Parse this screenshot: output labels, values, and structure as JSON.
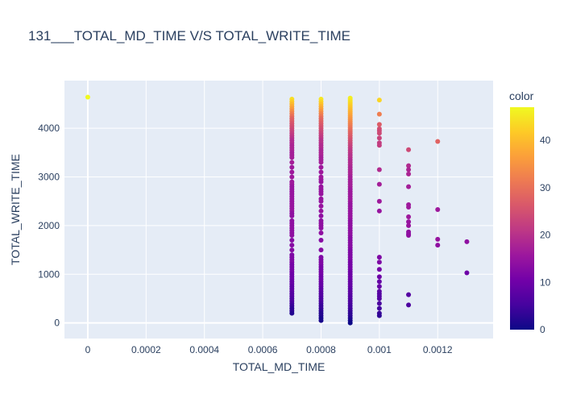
{
  "chart_data": {
    "type": "scatter",
    "title": "131___TOTAL_MD_TIME V/S TOTAL_WRITE_TIME",
    "xlabel": "TOTAL_MD_TIME",
    "ylabel": "TOTAL_WRITE_TIME",
    "xlim": [
      -8e-05,
      0.00139
    ],
    "ylim": [
      -320,
      4980
    ],
    "x_ticks": [
      0,
      0.0002,
      0.0004,
      0.0006,
      0.0008,
      0.001,
      0.0012
    ],
    "x_tick_labels": [
      "0",
      "0.0002",
      "0.0004",
      "0.0006",
      "0.0008",
      "0.001",
      "0.0012"
    ],
    "y_ticks": [
      0,
      1000,
      2000,
      3000,
      4000
    ],
    "y_tick_labels": [
      "0",
      "1000",
      "2000",
      "3000",
      "4000"
    ],
    "grid": true,
    "colorbar": {
      "title": "color",
      "range": [
        0,
        47
      ],
      "ticks": [
        0,
        10,
        20,
        30,
        40
      ],
      "tick_labels": [
        "0",
        "10",
        "20",
        "30",
        "40"
      ],
      "colorscale": [
        "#0d0887",
        "#46039f",
        "#7201a8",
        "#9c179e",
        "#bd3786",
        "#d8576b",
        "#ed7953",
        "#fb9f3a",
        "#fdca26",
        "#f0f921"
      ]
    },
    "series": [
      {
        "x": 0,
        "y": [
          4640
        ],
        "color": [
          47
        ]
      },
      {
        "x": 0.0007,
        "y": [
          4600,
          4550,
          4500,
          4450,
          4400,
          4350,
          4300,
          4250,
          4200,
          4150,
          4100,
          4050,
          4000,
          3950,
          3900,
          3850,
          3800,
          3750,
          3700,
          3650,
          3600,
          3550,
          3500,
          3450,
          3400,
          3300,
          3200,
          3100,
          3000,
          2900,
          2850,
          2800,
          2750,
          2700,
          2650,
          2600,
          2550,
          2500,
          2450,
          2400,
          2350,
          2300,
          2250,
          2200,
          2100,
          2050,
          2000,
          1950,
          1900,
          1850,
          1800,
          1700,
          1600,
          1500,
          1400,
          1350,
          1300,
          1250,
          1200,
          1150,
          1100,
          1050,
          1000,
          950,
          900,
          850,
          800,
          750,
          700,
          650,
          600,
          550,
          500,
          450,
          400,
          350,
          300,
          250,
          200
        ],
        "color": [
          44,
          42,
          40,
          38,
          36,
          34,
          32,
          30,
          28,
          27,
          26,
          25,
          24,
          23,
          22,
          21,
          20,
          19,
          19,
          18,
          18,
          18,
          17,
          17,
          17,
          17,
          16,
          16,
          16,
          16,
          16,
          15,
          15,
          15,
          15,
          15,
          15,
          15,
          15,
          15,
          15,
          15,
          14,
          14,
          14,
          14,
          14,
          14,
          14,
          14,
          14,
          13,
          13,
          13,
          12,
          12,
          12,
          12,
          11,
          11,
          11,
          11,
          10,
          10,
          10,
          9,
          9,
          8,
          8,
          8,
          7,
          7,
          6,
          6,
          5,
          4,
          3,
          3,
          2
        ]
      },
      {
        "x": 0.0008,
        "y": [
          4600,
          4550,
          4500,
          4450,
          4400,
          4350,
          4300,
          4250,
          4200,
          4150,
          4100,
          4050,
          4000,
          3950,
          3900,
          3850,
          3800,
          3750,
          3700,
          3650,
          3600,
          3550,
          3500,
          3450,
          3400,
          3350,
          3300,
          3200,
          3100,
          3000,
          2950,
          2900,
          2800,
          2750,
          2700,
          2650,
          2550,
          2500,
          2400,
          2300,
          2200,
          2100,
          2050,
          2000,
          1950,
          1850,
          1700,
          1500,
          1350,
          1300,
          1250,
          1200,
          1150,
          1100,
          1050,
          1000,
          950,
          900,
          850,
          800,
          750,
          700,
          650,
          600,
          550,
          500,
          450,
          400,
          350,
          300,
          250,
          200,
          150,
          100,
          50
        ],
        "color": [
          45,
          43,
          41,
          39,
          37,
          35,
          33,
          31,
          29,
          28,
          27,
          26,
          25,
          24,
          23,
          22,
          21,
          20,
          20,
          19,
          19,
          18,
          18,
          18,
          17,
          17,
          17,
          16,
          16,
          16,
          16,
          15,
          15,
          15,
          15,
          15,
          15,
          15,
          15,
          15,
          14,
          14,
          14,
          14,
          14,
          14,
          13,
          13,
          12,
          12,
          12,
          12,
          11,
          11,
          11,
          11,
          10,
          10,
          10,
          9,
          9,
          8,
          8,
          7,
          7,
          6,
          6,
          5,
          4,
          4,
          3,
          2,
          2,
          1,
          1
        ]
      },
      {
        "x": 0.0009,
        "y": [
          4620,
          4580,
          4540,
          4500,
          4460,
          4420,
          4380,
          4340,
          4300,
          4260,
          4220,
          4180,
          4140,
          4100,
          4060,
          4020,
          3980,
          3940,
          3900,
          3850,
          3800,
          3750,
          3700,
          3650,
          3600,
          3550,
          3500,
          3450,
          3400,
          3350,
          3300,
          3250,
          3200,
          3150,
          3100,
          3050,
          3000,
          2950,
          2900,
          2850,
          2800,
          2750,
          2700,
          2650,
          2600,
          2550,
          2500,
          2450,
          2400,
          2350,
          2300,
          2250,
          2200,
          2150,
          2100,
          2050,
          2000,
          1950,
          1900,
          1850,
          1800,
          1750,
          1700,
          1650,
          1600,
          1550,
          1500,
          1450,
          1400,
          1350,
          1300,
          1250,
          1200,
          1150,
          1100,
          1050,
          1000,
          950,
          900,
          850,
          800,
          750,
          700,
          650,
          600,
          550,
          500,
          450,
          400,
          350,
          300,
          250,
          200,
          150,
          100,
          50,
          0
        ],
        "color": [
          46,
          45,
          44,
          43,
          42,
          41,
          40,
          39,
          38,
          37,
          36,
          35,
          34,
          33,
          32,
          31,
          30,
          29,
          28,
          27,
          26,
          25,
          24,
          23,
          22,
          21,
          21,
          20,
          20,
          19,
          19,
          19,
          18,
          18,
          18,
          18,
          17,
          17,
          17,
          17,
          17,
          16,
          16,
          16,
          16,
          16,
          16,
          15,
          15,
          15,
          15,
          15,
          15,
          15,
          14,
          14,
          14,
          14,
          14,
          14,
          14,
          13,
          13,
          13,
          13,
          13,
          12,
          12,
          12,
          12,
          12,
          11,
          11,
          11,
          11,
          10,
          10,
          10,
          10,
          9,
          9,
          9,
          8,
          8,
          8,
          7,
          7,
          6,
          6,
          5,
          5,
          4,
          3,
          3,
          2,
          1,
          0
        ]
      },
      {
        "x": 0.001,
        "y": [
          4580,
          4290,
          4080,
          3990,
          3950,
          3900,
          3800,
          3700,
          3650,
          3150,
          2850,
          2500,
          2300,
          1350,
          1250,
          1100,
          950,
          850,
          750,
          650,
          600,
          550,
          500,
          400,
          300,
          200,
          150
        ],
        "color": [
          43,
          32,
          27,
          25,
          24,
          24,
          23,
          22,
          22,
          19,
          17,
          16,
          15,
          12,
          12,
          11,
          10,
          9,
          9,
          8,
          7,
          7,
          7,
          6,
          5,
          4,
          3
        ]
      },
      {
        "x": 0.0011,
        "y": [
          3560,
          3230,
          3150,
          3060,
          2800,
          2430,
          2380,
          2180,
          2080,
          2000,
          1870,
          1830,
          1800,
          580,
          370
        ],
        "color": [
          24,
          19,
          18,
          18,
          17,
          16,
          16,
          16,
          15,
          15,
          14,
          14,
          14,
          7,
          6
        ]
      },
      {
        "x": 0.0012,
        "y": [
          3730,
          2330,
          1720,
          1600
        ],
        "color": [
          28,
          16,
          15,
          14
        ]
      },
      {
        "x": 0.0013,
        "y": [
          1670,
          1030
        ],
        "color": [
          14,
          10
        ]
      }
    ]
  }
}
